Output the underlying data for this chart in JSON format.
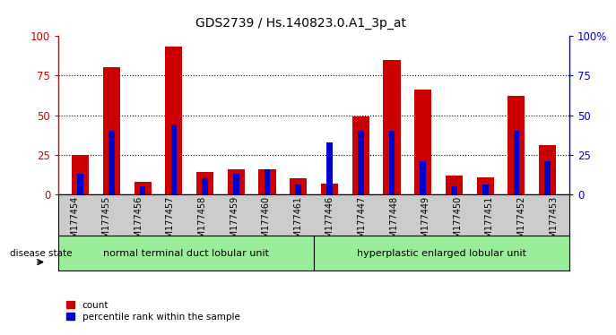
{
  "title": "GDS2739 / Hs.140823.0.A1_3p_at",
  "samples": [
    "GSM177454",
    "GSM177455",
    "GSM177456",
    "GSM177457",
    "GSM177458",
    "GSM177459",
    "GSM177460",
    "GSM177461",
    "GSM177446",
    "GSM177447",
    "GSM177448",
    "GSM177449",
    "GSM177450",
    "GSM177451",
    "GSM177452",
    "GSM177453"
  ],
  "count_values": [
    25,
    80,
    8,
    93,
    14,
    16,
    16,
    10,
    7,
    49,
    85,
    66,
    12,
    11,
    62,
    31
  ],
  "percentile_values": [
    13,
    40,
    5,
    44,
    10,
    13,
    16,
    6,
    33,
    40,
    40,
    21,
    5,
    6,
    40,
    21
  ],
  "group1_label": "normal terminal duct lobular unit",
  "group2_label": "hyperplastic enlarged lobular unit",
  "group1_count": 8,
  "group2_count": 8,
  "disease_state_label": "disease state",
  "legend_count_label": "count",
  "legend_percentile_label": "percentile rank within the sample",
  "ylim": [
    0,
    100
  ],
  "y_ticks": [
    0,
    25,
    50,
    75,
    100
  ],
  "bar_color_count": "#cc0000",
  "bar_color_percentile": "#0000cc",
  "group_bg": "#99ee99",
  "bar_width": 0.55,
  "tick_bg": "#cccccc",
  "title_fontsize": 10,
  "tick_label_fontsize": 7,
  "right_yaxis_color": "#0000cc",
  "left_yaxis_color": "#cc0000",
  "axis_label_fontsize": 8.5
}
